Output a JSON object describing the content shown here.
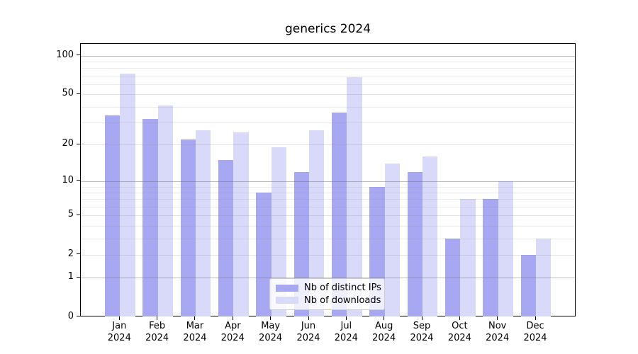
{
  "title": "generics 2024",
  "legend": {
    "items": [
      {
        "label": "Nb of distinct IPs",
        "color": "#a8a8f2"
      },
      {
        "label": "Nb of downloads",
        "color": "#d9d9fa"
      }
    ]
  },
  "chart_data": {
    "type": "bar",
    "title": "generics 2024",
    "categories": [
      "Jan 2024",
      "Feb 2024",
      "Mar 2024",
      "Apr 2024",
      "May 2024",
      "Jun 2024",
      "Jul 2024",
      "Aug 2024",
      "Sep 2024",
      "Oct 2024",
      "Nov 2024",
      "Dec 2024"
    ],
    "series": [
      {
        "name": "Nb of distinct IPs",
        "color": "#a8a8f2",
        "values": [
          34,
          32,
          22,
          15,
          8,
          12,
          36,
          9,
          12,
          3,
          7,
          2
        ]
      },
      {
        "name": "Nb of downloads",
        "color": "#d9d9fa",
        "values": [
          73,
          41,
          26,
          25,
          19,
          26,
          68,
          14,
          16,
          7,
          10,
          3
        ]
      }
    ],
    "yscale": "log10(1+y)",
    "ylim": [
      0,
      118
    ],
    "yticks": [
      0,
      1,
      2,
      5,
      10,
      20,
      50,
      100
    ],
    "decade_gridlines": [
      1,
      10,
      100
    ],
    "labeled_gridlines": [
      2,
      5,
      20,
      50
    ],
    "minor_gridlines": [
      3,
      4,
      6,
      7,
      8,
      9,
      30,
      40,
      60,
      70,
      80,
      90
    ],
    "grid": true,
    "legend_position": "bottom-center"
  }
}
